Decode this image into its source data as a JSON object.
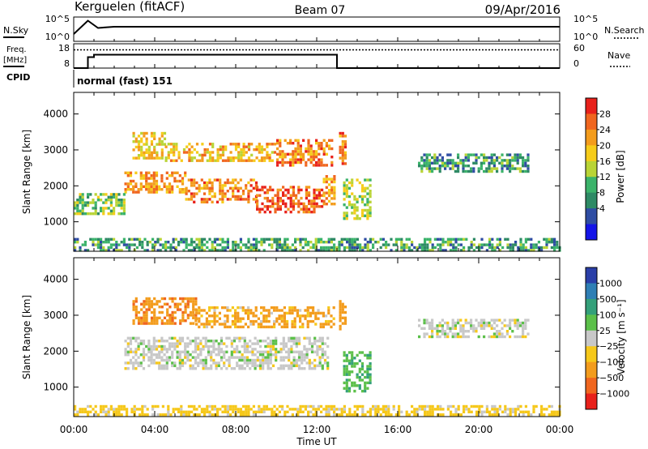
{
  "header": {
    "station": "Kerguelen (fitACF)",
    "beam": "Beam 07",
    "date": "09/Apr/2016"
  },
  "panels": {
    "nsky": {
      "left_label": "N.Sky",
      "right_label": "N.Search",
      "left_ticks": [
        "10^5",
        "10^0"
      ],
      "right_ticks": [
        "10^5",
        "10^0"
      ]
    },
    "freq": {
      "left_label_top": "Freq.",
      "left_label_unit": "[MHz]",
      "right_label": "Nave",
      "left_ticks": [
        "18",
        "8"
      ],
      "right_ticks": [
        "60",
        "0"
      ]
    },
    "cpid": {
      "label": "CPID",
      "value": "normal (fast) 151"
    }
  },
  "colorbars": {
    "power": {
      "title": "Power [dB]",
      "labels": [
        "28",
        "24",
        "20",
        "16",
        "12",
        "8",
        "4"
      ],
      "colors": [
        "#e8211b",
        "#f0661f",
        "#f39c1d",
        "#f6cc1a",
        "#b9d436",
        "#3bb36a",
        "#2e8a65",
        "#2f4da3",
        "#1414e8"
      ]
    },
    "velocity": {
      "title": "Velocity [m s⁻¹]",
      "labels": [
        "1000",
        "500",
        "100",
        "25",
        "−25",
        "−100",
        "−500",
        "−1000"
      ],
      "colors": [
        "#2a3fa8",
        "#2f7fb5",
        "#34a07a",
        "#5cc04a",
        "#c8c8c8",
        "#f6c81a",
        "#f39c1d",
        "#f0661f",
        "#e8211b"
      ]
    }
  },
  "chart_data": [
    {
      "type": "line",
      "name": "nsky-nsearch",
      "x": [
        0,
        0.7,
        1.2,
        2,
        4,
        6,
        8,
        10,
        12,
        14,
        16,
        18,
        20,
        22,
        24
      ],
      "nsky": [
        0.3,
        0.85,
        0.55,
        0.6,
        0.6,
        0.6,
        0.6,
        0.6,
        0.6,
        0.6,
        0.6,
        0.6,
        0.6,
        0.6,
        0.6
      ],
      "xlim": [
        0,
        24
      ]
    },
    {
      "type": "line",
      "name": "freq-nave",
      "x": [
        0,
        0.7,
        1.0,
        13.0,
        24
      ],
      "freq": [
        8,
        12.5,
        13.5,
        8,
        8
      ],
      "nave": [
        45,
        45,
        45,
        45,
        45
      ],
      "freq_ylim": [
        8,
        18
      ],
      "nave_ylim": [
        0,
        60
      ]
    },
    {
      "type": "heatmap",
      "name": "power",
      "title": "",
      "xlabel": "",
      "ylabel": "Slant Range [km]",
      "xlim": [
        0,
        24
      ],
      "ylim": [
        180,
        4600
      ],
      "yticks": [
        1000,
        2000,
        3000,
        4000
      ],
      "regions": [
        {
          "x0": 2.9,
          "x1": 4.5,
          "r0": 2750,
          "r1": 3500,
          "dB": 18
        },
        {
          "x0": 4.5,
          "x1": 10.0,
          "r0": 2700,
          "r1": 3200,
          "dB": 20
        },
        {
          "x0": 10.0,
          "x1": 12.8,
          "r0": 2550,
          "r1": 3300,
          "dB": 24
        },
        {
          "x0": 2.5,
          "x1": 5.5,
          "r0": 1850,
          "r1": 2400,
          "dB": 22
        },
        {
          "x0": 5.5,
          "x1": 9.0,
          "r0": 1550,
          "r1": 2200,
          "dB": 24
        },
        {
          "x0": 9.0,
          "x1": 12.3,
          "r0": 1300,
          "r1": 2000,
          "dB": 27
        },
        {
          "x0": 12.3,
          "x1": 12.9,
          "r0": 1500,
          "r1": 2300,
          "dB": 22
        },
        {
          "x0": 13.1,
          "x1": 13.4,
          "r0": 2600,
          "r1": 3500,
          "dB": 24
        },
        {
          "x0": 13.3,
          "x1": 14.6,
          "r0": 1100,
          "r1": 2200,
          "dB": 14
        },
        {
          "x0": 0.0,
          "x1": 2.5,
          "r0": 1200,
          "r1": 1800,
          "dB": 12
        },
        {
          "x0": 17.0,
          "x1": 22.5,
          "r0": 2400,
          "r1": 2900,
          "dB": 8
        },
        {
          "x0": 0.0,
          "x1": 24.0,
          "r0": 200,
          "r1": 550,
          "dB": 8
        }
      ]
    },
    {
      "type": "heatmap",
      "name": "velocity",
      "title": "",
      "xlabel": "Time UT",
      "ylabel": "Slant Range [km]",
      "xlim": [
        0,
        24
      ],
      "ylim": [
        180,
        4600
      ],
      "yticks": [
        1000,
        2000,
        3000,
        4000
      ],
      "xticks": [
        "00:00",
        "04:00",
        "08:00",
        "12:00",
        "16:00",
        "20:00",
        "00:00"
      ],
      "regions": [
        {
          "x0": 2.9,
          "x1": 6.0,
          "r0": 2800,
          "r1": 3500,
          "v": -400
        },
        {
          "x0": 6.0,
          "x1": 12.8,
          "r0": 2650,
          "r1": 3250,
          "v": -200
        },
        {
          "x0": 2.5,
          "x1": 12.5,
          "r0": 1500,
          "r1": 2400,
          "v": 0
        },
        {
          "x0": 13.1,
          "x1": 13.4,
          "r0": 2600,
          "r1": 3500,
          "v": -300
        },
        {
          "x0": 13.3,
          "x1": 14.6,
          "r0": 900,
          "r1": 2000,
          "v": 80
        },
        {
          "x0": 0.0,
          "x1": 24.0,
          "r0": 200,
          "r1": 500,
          "v": -50
        },
        {
          "x0": 17.0,
          "x1": 22.5,
          "r0": 2400,
          "r1": 2900,
          "v": 0
        }
      ]
    }
  ]
}
